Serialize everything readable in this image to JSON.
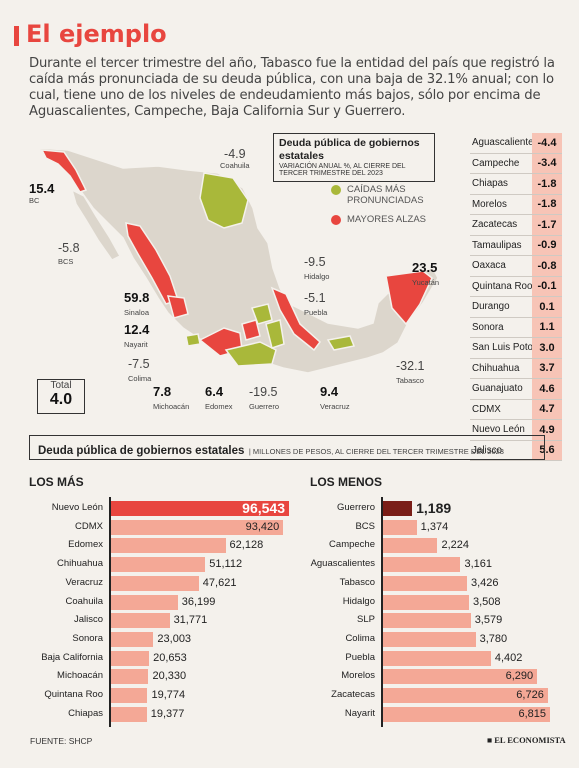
{
  "header": {
    "title": "El ejemplo",
    "intro": "Durante el tercer trimestre del año, Tabasco fue la entidad del país que registró la caída más pronunciada de su deuda pública, con una baja de 32.1% anual; con lo cual, tiene uno de los niveles de endeudamiento más bajos, sólo por encima de Aguascalientes, Campeche, Baja California Sur y Guerrero."
  },
  "map": {
    "legend_title": "Deuda pública de gobiernos estatales",
    "legend_sub": "VARIACIÓN ANUAL %, AL CIERRE DEL TERCER TRIMESTRE DEL 2023",
    "legend_items": [
      {
        "label": "CAÍDAS MÁS PRONUNCIADAS",
        "color": "#a9b83a"
      },
      {
        "label": "MAYORES ALZAS",
        "color": "#e8463f"
      }
    ],
    "labels": [
      {
        "value": "15.4",
        "name": "BC",
        "bold": true
      },
      {
        "value": "-5.8",
        "name": "BCS",
        "bold": false
      },
      {
        "value": "-4.9",
        "name": "Coahuila",
        "bold": false
      },
      {
        "value": "59.8",
        "name": "Sinaloa",
        "bold": true
      },
      {
        "value": "12.4",
        "name": "Nayarit",
        "bold": true
      },
      {
        "value": "-7.5",
        "name": "Colima",
        "bold": false
      },
      {
        "value": "7.8",
        "name": "Michoacán",
        "bold": true
      },
      {
        "value": "6.4",
        "name": "Edomex",
        "bold": true
      },
      {
        "value": "-19.5",
        "name": "Guerrero",
        "bold": false
      },
      {
        "value": "9.4",
        "name": "Veracruz",
        "bold": true
      },
      {
        "value": "-9.5",
        "name": "Hidalgo",
        "bold": false
      },
      {
        "value": "-5.1",
        "name": "Puebla",
        "bold": false
      },
      {
        "value": "23.5",
        "name": "Yucatán",
        "bold": true
      },
      {
        "value": "-32.1",
        "name": "Tabasco",
        "bold": false
      }
    ],
    "total_label": "Total",
    "total_value": "4.0",
    "colors": {
      "red": "#e8463f",
      "green": "#a9b83a",
      "gray": "#dcd6cc"
    }
  },
  "state_table": [
    {
      "name": "Aguascalientes",
      "value": "-4.4"
    },
    {
      "name": "Campeche",
      "value": "-3.4"
    },
    {
      "name": "Chiapas",
      "value": "-1.8"
    },
    {
      "name": "Morelos",
      "value": "-1.8"
    },
    {
      "name": "Zacatecas",
      "value": "-1.7"
    },
    {
      "name": "Tamaulipas",
      "value": "-0.9"
    },
    {
      "name": "Oaxaca",
      "value": "-0.8"
    },
    {
      "name": "Quintana Roo",
      "value": "-0.1"
    },
    {
      "name": "Durango",
      "value": "0.1"
    },
    {
      "name": "Sonora",
      "value": "1.1"
    },
    {
      "name": "San Luis Potosí",
      "value": "3.0"
    },
    {
      "name": "Chihuahua",
      "value": "3.7"
    },
    {
      "name": "Guanajuato",
      "value": "4.6"
    },
    {
      "name": "CDMX",
      "value": "4.7"
    },
    {
      "name": "Nuevo León",
      "value": "4.9"
    },
    {
      "name": "Jalisco",
      "value": "5.6"
    }
  ],
  "section": {
    "title": "Deuda pública de gobiernos estatales",
    "sub": "MILLONES DE PESOS, AL CIERRE DEL TERCER TRIMESTRE DEL 2023"
  },
  "chart_data": [
    {
      "type": "bar",
      "title": "LOS MÁS",
      "orientation": "horizontal",
      "categories": [
        "Nuevo León",
        "CDMX",
        "Edomex",
        "Chihuahua",
        "Veracruz",
        "Coahuila",
        "Jalisco",
        "Sonora",
        "Baja California",
        "Michoacán",
        "Quintana Roo",
        "Chiapas"
      ],
      "values": [
        96543,
        93420,
        62128,
        51112,
        47621,
        36199,
        31771,
        23003,
        20653,
        20330,
        19774,
        19377
      ],
      "value_labels": [
        "96,543",
        "93,420",
        "62,128",
        "51,112",
        "47,621",
        "36,199",
        "31,771",
        "23,003",
        "20,653",
        "20,330",
        "19,774",
        "19,377"
      ],
      "highlight_color": "#e8463f",
      "bar_color": "#f4a896"
    },
    {
      "type": "bar",
      "title": "LOS MENOS",
      "orientation": "horizontal",
      "categories": [
        "Guerrero",
        "BCS",
        "Campeche",
        "Aguascalientes",
        "Tabasco",
        "Hidalgo",
        "SLP",
        "Colima",
        "Puebla",
        "Morelos",
        "Zacatecas",
        "Nayarit"
      ],
      "values": [
        1189,
        1374,
        2224,
        3161,
        3426,
        3508,
        3579,
        3780,
        4402,
        6290,
        6726,
        6815
      ],
      "value_labels": [
        "1,189",
        "1,374",
        "2,224",
        "3,161",
        "3,426",
        "3,508",
        "3,579",
        "3,780",
        "4,402",
        "6,290",
        "6,726",
        "6,815"
      ],
      "highlight_color": "#7a1e18",
      "bar_color": "#f4a896"
    }
  ],
  "footer": {
    "source": "FUENTE: SHCP",
    "brand": "EL ECONOMISTA"
  }
}
